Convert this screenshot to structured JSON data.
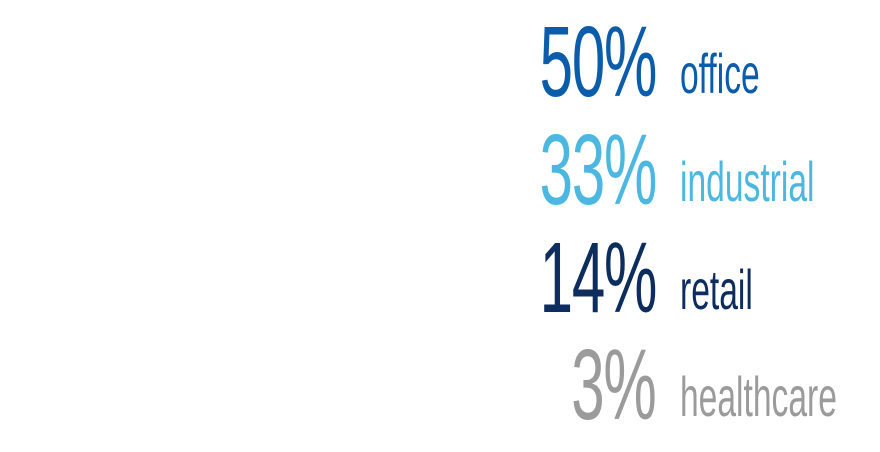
{
  "chart_data": {
    "type": "table",
    "categories": [
      "office",
      "industrial",
      "retail",
      "healthcare"
    ],
    "values": [
      50,
      33,
      14,
      3
    ],
    "value_labels": [
      "50%",
      "33%",
      "14%",
      "3%"
    ],
    "colors": [
      "#0b5cab",
      "#4cb8e2",
      "#0c2d5e",
      "#9b9b9b"
    ],
    "unit": "%"
  }
}
